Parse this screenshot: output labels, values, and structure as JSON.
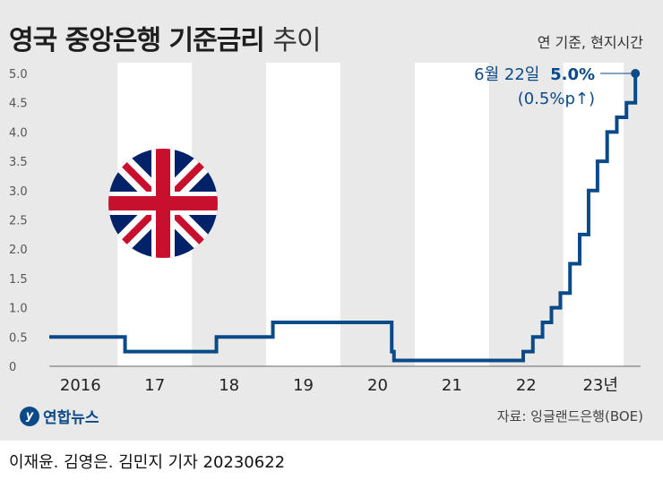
{
  "header": {
    "title_bold": "영국 중앙은행 기준금리",
    "title_light": "추이",
    "subtitle": "연 기준, 현지시간"
  },
  "annotation": {
    "date": "6월 22일",
    "value": "5.0%",
    "change": "(0.5%p↑)"
  },
  "footer": {
    "logo_text": "연합뉴스",
    "source": "자료: 잉글랜드은행(BOE)",
    "credit": "이재윤. 김영은. 김민지 기자  20230622"
  },
  "colors": {
    "line": "#0b4a88",
    "bg": "#e9e9e9",
    "band": "#ffffff"
  },
  "chart_data": {
    "type": "line",
    "step": true,
    "ylim": [
      0,
      5.0
    ],
    "yticks": [
      "0",
      "0.5",
      "1.0",
      "1.5",
      "2.0",
      "2.5",
      "3.0",
      "3.5",
      "4.0",
      "4.5",
      "5.0"
    ],
    "xlim": [
      2015.58,
      2023.48
    ],
    "xticks": [
      {
        "label": "2016",
        "x": 2016.0
      },
      {
        "label": "17",
        "x": 2017.0
      },
      {
        "label": "18",
        "x": 2018.0
      },
      {
        "label": "19",
        "x": 2019.0
      },
      {
        "label": "20",
        "x": 2020.0
      },
      {
        "label": "21",
        "x": 2021.0
      },
      {
        "label": "22",
        "x": 2022.0
      },
      {
        "label": "23년",
        "x": 2023.0
      }
    ],
    "points": [
      {
        "x": 2015.58,
        "y": 0.5
      },
      {
        "x": 2016.6,
        "y": 0.25
      },
      {
        "x": 2017.83,
        "y": 0.5
      },
      {
        "x": 2018.59,
        "y": 0.75
      },
      {
        "x": 2020.19,
        "y": 0.25
      },
      {
        "x": 2020.22,
        "y": 0.1
      },
      {
        "x": 2021.96,
        "y": 0.25
      },
      {
        "x": 2022.09,
        "y": 0.5
      },
      {
        "x": 2022.22,
        "y": 0.75
      },
      {
        "x": 2022.34,
        "y": 1.0
      },
      {
        "x": 2022.46,
        "y": 1.25
      },
      {
        "x": 2022.59,
        "y": 1.75
      },
      {
        "x": 2022.72,
        "y": 2.25
      },
      {
        "x": 2022.84,
        "y": 3.0
      },
      {
        "x": 2022.96,
        "y": 3.5
      },
      {
        "x": 2023.09,
        "y": 4.0
      },
      {
        "x": 2023.22,
        "y": 4.25
      },
      {
        "x": 2023.35,
        "y": 4.5
      },
      {
        "x": 2023.47,
        "y": 5.0
      }
    ]
  }
}
